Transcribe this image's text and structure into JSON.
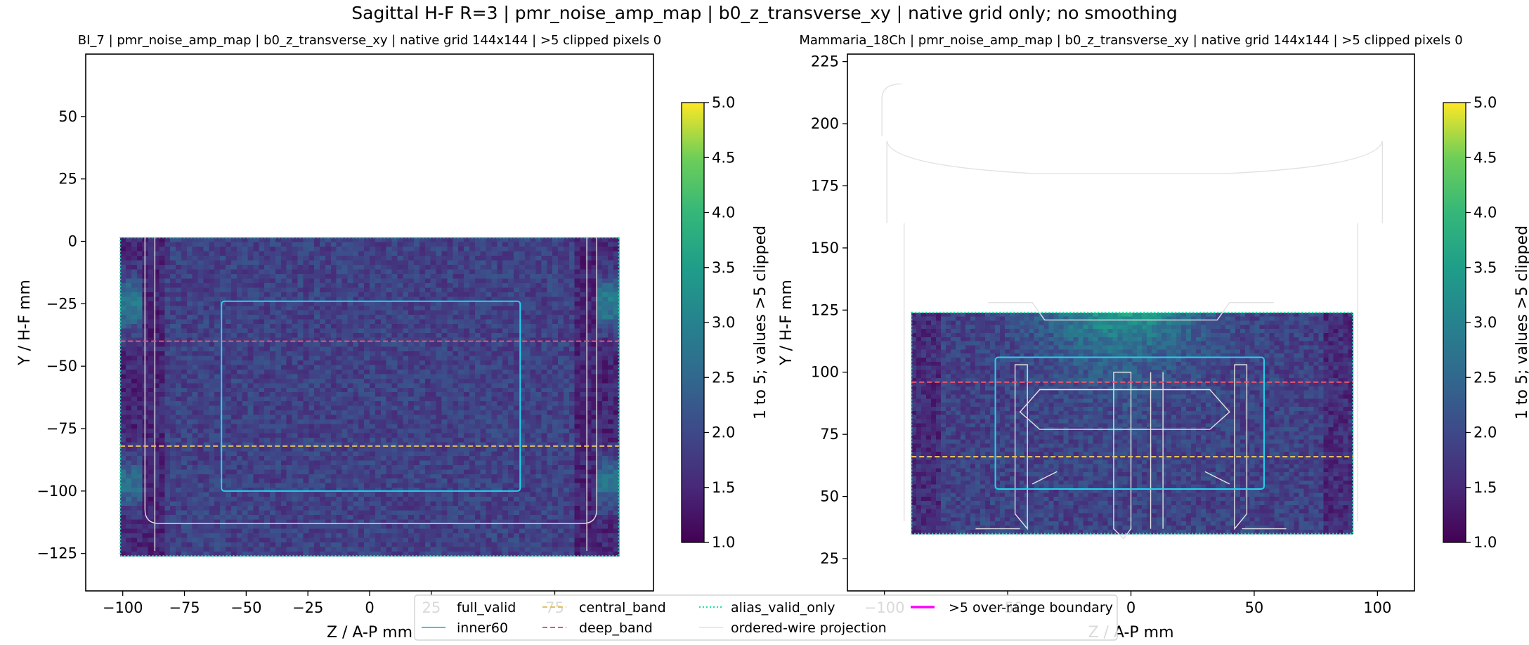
{
  "suptitle": "Sagittal H-F R=3 | pmr_noise_amp_map | b0_z_transverse_xy | native grid only; no smoothing",
  "colors": {
    "inner60": "#22d3ee",
    "central_band": "#e8c060",
    "deep_band": "#e8556e",
    "alias_valid_only": "#22e6a8",
    "wire": "#e2e2e2",
    "overrange": "#ff00ff"
  },
  "colormap": "viridis",
  "legend": {
    "placement": "bottom-center",
    "entries": [
      {
        "label": "full_valid",
        "style": "none"
      },
      {
        "label": "inner60",
        "style": "solid-cyan"
      },
      {
        "label": "central_band",
        "style": "dashed-yellow"
      },
      {
        "label": "deep_band",
        "style": "dashed-red"
      },
      {
        "label": "alias_valid_only",
        "style": "dotted-green"
      },
      {
        "label": "ordered-wire projection",
        "style": "solid-faint"
      },
      {
        "label": ">5 over-range boundary",
        "style": "solid-magenta"
      }
    ]
  },
  "chart_data": [
    {
      "type": "heatmap",
      "title": "BI_7 | pmr_noise_amp_map | b0_z_transverse_xy | native grid 144x144 | >5 clipped pixels 0",
      "xlabel": "Z / A-P mm",
      "ylabel": "Y / H-F mm",
      "xlim": [
        -115,
        115
      ],
      "ylim": [
        -140,
        75
      ],
      "xticks": [
        -100,
        -75,
        -50,
        -25,
        0,
        25,
        75
      ],
      "xtick_labels": [
        "−100",
        "−75",
        "−50",
        "−25",
        "0",
        "25",
        "75"
      ],
      "yticks": [
        -125,
        -100,
        -75,
        -50,
        -25,
        0,
        25,
        50
      ],
      "ytick_labels": [
        "−125",
        "−100",
        "−75",
        "−50",
        "−25",
        "0",
        "25",
        "50"
      ],
      "grid": false,
      "data_extent": {
        "x": [
          -101,
          101
        ],
        "y": [
          -126,
          1.5
        ]
      },
      "inner60": {
        "x": [
          -60,
          61
        ],
        "y": [
          -100,
          -24
        ]
      },
      "deep_band_y": -40,
      "central_band_y": -82,
      "colorbar": {
        "min": 1.0,
        "max": 5.0,
        "ticks": [
          "1.0",
          "1.5",
          "2.0",
          "2.5",
          "3.0",
          "3.5",
          "4.0",
          "4.5",
          "5.0"
        ],
        "label": "1 to 5; values >5 clipped"
      },
      "clipped_pixels": 0
    },
    {
      "type": "heatmap",
      "title": "Mammaria_18Ch | pmr_noise_amp_map | b0_z_transverse_xy | native grid 144x144 | >5 clipped pixels 0",
      "xlabel": "Z / A-P mm",
      "ylabel": "Y / H-F mm",
      "xlim": [
        -115,
        115
      ],
      "ylim": [
        12,
        228
      ],
      "xticks": [
        -100,
        -50,
        0,
        50,
        100
      ],
      "xtick_labels": [
        "−100",
        "−50",
        "0",
        "50",
        "100"
      ],
      "yticks": [
        25,
        50,
        75,
        100,
        125,
        150,
        175,
        200,
        225
      ],
      "ytick_labels": [
        "25",
        "50",
        "75",
        "100",
        "125",
        "150",
        "175",
        "200",
        "225"
      ],
      "grid": false,
      "data_extent": {
        "x": [
          -89,
          90
        ],
        "y": [
          35,
          124
        ]
      },
      "inner60": {
        "x": [
          -55,
          54
        ],
        "y": [
          53,
          106
        ]
      },
      "deep_band_y": 96,
      "central_band_y": 66,
      "colorbar": {
        "min": 1.0,
        "max": 5.0,
        "ticks": [
          "1.0",
          "1.5",
          "2.0",
          "2.5",
          "3.0",
          "3.5",
          "4.0",
          "4.5",
          "5.0"
        ],
        "label": "1 to 5; values >5 clipped"
      },
      "clipped_pixels": 0
    }
  ]
}
